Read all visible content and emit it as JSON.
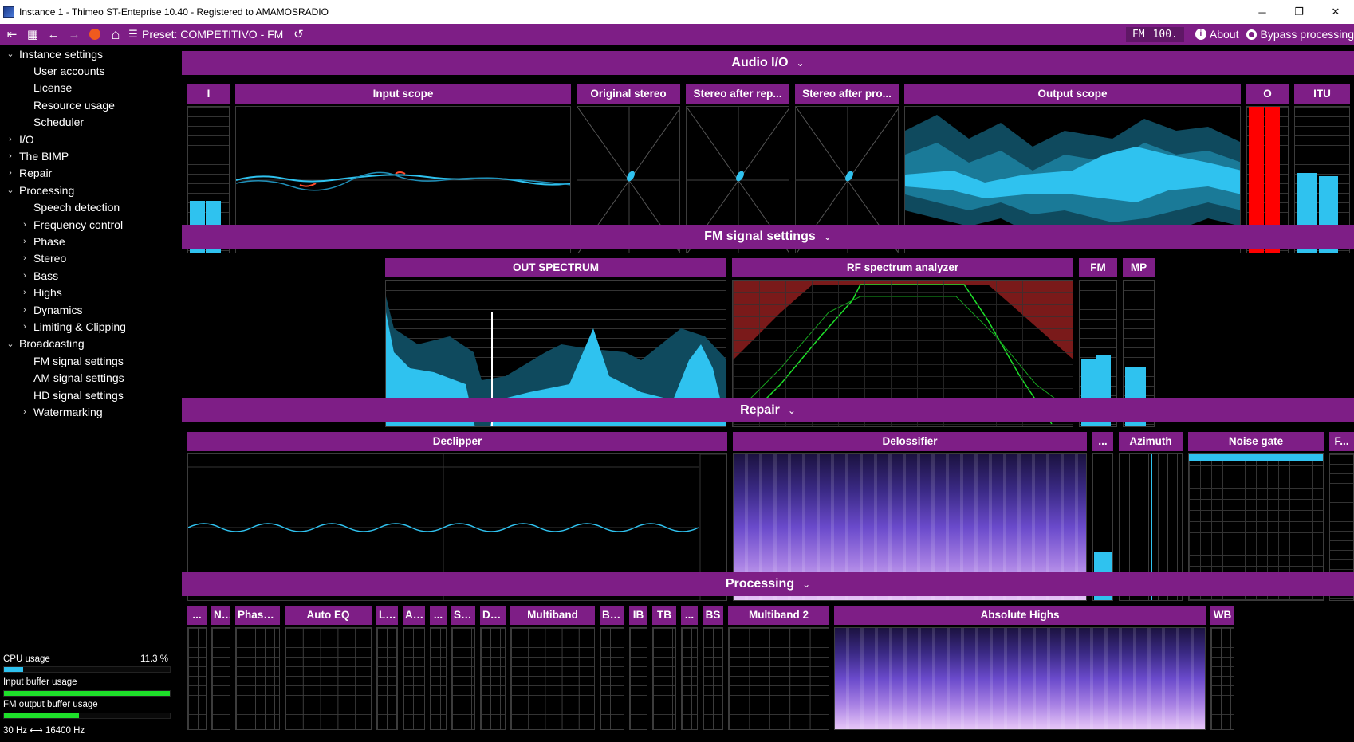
{
  "window": {
    "title": "Instance 1 - Thimeo ST-Enteprise 10.40 - Registered to AMAMOSRADIO",
    "controls": [
      "─",
      "❐",
      "✕"
    ]
  },
  "toolbar": {
    "first_icon": "⇤",
    "grid_icon": "▦",
    "back_icon": "←",
    "forward_icon": "→",
    "home_icon": "⌂",
    "preset_icon": "☰",
    "preset_label": "Preset: COMPETITIVO - FM",
    "reset_icon": "↺",
    "fm_badge": "FM",
    "level_badge": "100.",
    "about_icon": "i",
    "about_label": "About",
    "bypass_label": "Bypass processing"
  },
  "sidebar": {
    "items": [
      {
        "label": "Instance settings",
        "chev": "⌄",
        "indent": 0
      },
      {
        "label": "User accounts",
        "chev": "",
        "indent": 1
      },
      {
        "label": "License",
        "chev": "",
        "indent": 1
      },
      {
        "label": "Resource usage",
        "chev": "",
        "indent": 1
      },
      {
        "label": "Scheduler",
        "chev": "",
        "indent": 1
      },
      {
        "label": "I/O",
        "chev": "›",
        "indent": 0
      },
      {
        "label": "The BIMP",
        "chev": "›",
        "indent": 0
      },
      {
        "label": "Repair",
        "chev": "›",
        "indent": 0
      },
      {
        "label": "Processing",
        "chev": "⌄",
        "indent": 0
      },
      {
        "label": "Speech detection",
        "chev": "",
        "indent": 1
      },
      {
        "label": "Frequency control",
        "chev": "›",
        "indent": 1
      },
      {
        "label": "Phase",
        "chev": "›",
        "indent": 1
      },
      {
        "label": "Stereo",
        "chev": "›",
        "indent": 1
      },
      {
        "label": "Bass",
        "chev": "›",
        "indent": 1
      },
      {
        "label": "Highs",
        "chev": "›",
        "indent": 1
      },
      {
        "label": "Dynamics",
        "chev": "›",
        "indent": 1
      },
      {
        "label": "Limiting & Clipping",
        "chev": "›",
        "indent": 1
      },
      {
        "label": "Broadcasting",
        "chev": "⌄",
        "indent": 0
      },
      {
        "label": "FM signal settings",
        "chev": "",
        "indent": 1
      },
      {
        "label": "AM signal settings",
        "chev": "",
        "indent": 1
      },
      {
        "label": "HD signal settings",
        "chev": "",
        "indent": 1
      },
      {
        "label": "Watermarking",
        "chev": "›",
        "indent": 1
      }
    ],
    "status": {
      "cpu_label": "CPU usage",
      "cpu_value": "11.3 %",
      "cpu_level": 0.113,
      "input_label": "Input buffer usage",
      "input_level": 1.0,
      "fm_label": "FM output buffer usage",
      "fm_level": 0.45,
      "freq_low": "30 Hz",
      "freq_high": "16400 Hz"
    }
  },
  "sections": {
    "audio_io": "Audio I/O",
    "fm": "FM signal settings",
    "repair": "Repair",
    "processing": "Processing",
    "chevron": "⌄"
  },
  "audio_io": {
    "in_meter": "I",
    "input_scope": "Input scope",
    "original_stereo": "Original stereo",
    "stereo_repair": "Stereo after rep...",
    "stereo_proc": "Stereo after pro...",
    "output_scope": "Output scope",
    "out_meter": "O",
    "itu": "ITU"
  },
  "fm_panels": {
    "out_spectrum": "OUT SPECTRUM",
    "rf_spectrum": "RF spectrum analyzer",
    "fm": "FM",
    "mp": "MP"
  },
  "repair_panels": {
    "declipper": "Declipper",
    "delossifier": "Delossifier",
    "ellipsis": "...",
    "azimuth": "Azimuth",
    "noise_gate": "Noise gate",
    "f_trunc": "F..."
  },
  "processing_panels": [
    "...",
    "Nat...",
    "Phase ...",
    "Auto EQ",
    "LLB",
    "AGC",
    "...",
    "Ster...",
    "Del...",
    "Multiband",
    "BEQ",
    "IB",
    "TB",
    "...",
    "BS",
    "Multiband 2",
    "Absolute Highs",
    "WB"
  ],
  "colors": {
    "accent": "#7e1e86",
    "meter": "#2fc2ef",
    "clip": "#ff0000",
    "buffer_ok": "#1ee02a"
  }
}
